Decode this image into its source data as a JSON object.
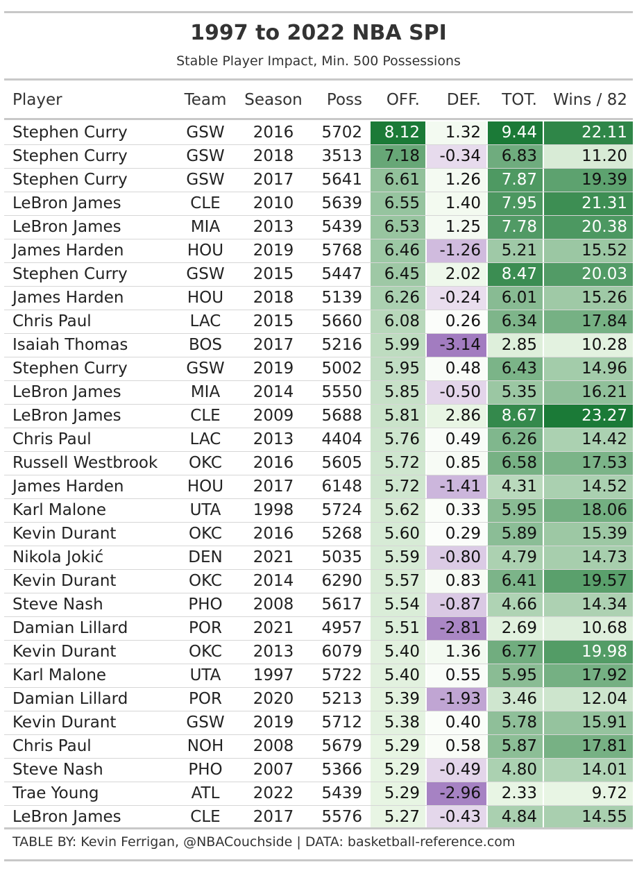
{
  "title": "1997 to 2022 NBA SPI",
  "subtitle": "Stable Player Impact, Min. 500 Possessions",
  "footer": "TABLE BY: Kevin Ferrigan, @NBACouchside | DATA: basketball-reference.com",
  "colors": {
    "green_dark": "#1b7a37",
    "green_light": "#e8f5e4",
    "purple_dark": "#a27cc0",
    "purple_light": "#efe6f2",
    "rule": "#c8c8c8"
  },
  "chart_data": {
    "type": "table",
    "columns": [
      "Player",
      "Team",
      "Season",
      "Poss",
      "OFF.",
      "DEF.",
      "TOT.",
      "Wins / 82"
    ],
    "rows": [
      [
        "Stephen Curry",
        "GSW",
        "2016",
        "5702",
        "8.12",
        "1.32",
        "9.44",
        "22.11"
      ],
      [
        "Stephen Curry",
        "GSW",
        "2018",
        "3513",
        "7.18",
        "-0.34",
        "6.83",
        "11.20"
      ],
      [
        "Stephen Curry",
        "GSW",
        "2017",
        "5641",
        "6.61",
        "1.26",
        "7.87",
        "19.39"
      ],
      [
        "LeBron James",
        "CLE",
        "2010",
        "5639",
        "6.55",
        "1.40",
        "7.95",
        "21.31"
      ],
      [
        "LeBron James",
        "MIA",
        "2013",
        "5439",
        "6.53",
        "1.25",
        "7.78",
        "20.38"
      ],
      [
        "James Harden",
        "HOU",
        "2019",
        "5768",
        "6.46",
        "-1.26",
        "5.21",
        "15.52"
      ],
      [
        "Stephen Curry",
        "GSW",
        "2015",
        "5447",
        "6.45",
        "2.02",
        "8.47",
        "20.03"
      ],
      [
        "James Harden",
        "HOU",
        "2018",
        "5139",
        "6.26",
        "-0.24",
        "6.01",
        "15.26"
      ],
      [
        "Chris Paul",
        "LAC",
        "2015",
        "5660",
        "6.08",
        "0.26",
        "6.34",
        "17.84"
      ],
      [
        "Isaiah Thomas",
        "BOS",
        "2017",
        "5216",
        "5.99",
        "-3.14",
        "2.85",
        "10.28"
      ],
      [
        "Stephen Curry",
        "GSW",
        "2019",
        "5002",
        "5.95",
        "0.48",
        "6.43",
        "14.96"
      ],
      [
        "LeBron James",
        "MIA",
        "2014",
        "5550",
        "5.85",
        "-0.50",
        "5.35",
        "16.21"
      ],
      [
        "LeBron James",
        "CLE",
        "2009",
        "5688",
        "5.81",
        "2.86",
        "8.67",
        "23.27"
      ],
      [
        "Chris Paul",
        "LAC",
        "2013",
        "4404",
        "5.76",
        "0.49",
        "6.26",
        "14.42"
      ],
      [
        "Russell Westbrook",
        "OKC",
        "2016",
        "5605",
        "5.72",
        "0.85",
        "6.58",
        "17.53"
      ],
      [
        "James Harden",
        "HOU",
        "2017",
        "6148",
        "5.72",
        "-1.41",
        "4.31",
        "14.52"
      ],
      [
        "Karl Malone",
        "UTA",
        "1998",
        "5724",
        "5.62",
        "0.33",
        "5.95",
        "18.06"
      ],
      [
        "Kevin Durant",
        "OKC",
        "2016",
        "5268",
        "5.60",
        "0.29",
        "5.89",
        "15.39"
      ],
      [
        "Nikola Jokić",
        "DEN",
        "2021",
        "5035",
        "5.59",
        "-0.80",
        "4.79",
        "14.73"
      ],
      [
        "Kevin Durant",
        "OKC",
        "2014",
        "6290",
        "5.57",
        "0.83",
        "6.41",
        "19.57"
      ],
      [
        "Steve Nash",
        "PHO",
        "2008",
        "5617",
        "5.54",
        "-0.87",
        "4.66",
        "14.34"
      ],
      [
        "Damian Lillard",
        "POR",
        "2021",
        "4957",
        "5.51",
        "-2.81",
        "2.69",
        "10.68"
      ],
      [
        "Kevin Durant",
        "OKC",
        "2013",
        "6079",
        "5.40",
        "1.36",
        "6.77",
        "19.98"
      ],
      [
        "Karl Malone",
        "UTA",
        "1997",
        "5722",
        "5.40",
        "0.55",
        "5.95",
        "17.92"
      ],
      [
        "Damian Lillard",
        "POR",
        "2020",
        "5213",
        "5.39",
        "-1.93",
        "3.46",
        "12.04"
      ],
      [
        "Kevin Durant",
        "GSW",
        "2019",
        "5712",
        "5.38",
        "0.40",
        "5.78",
        "15.91"
      ],
      [
        "Chris Paul",
        "NOH",
        "2008",
        "5679",
        "5.29",
        "0.58",
        "5.87",
        "17.81"
      ],
      [
        "Steve Nash",
        "PHO",
        "2007",
        "5366",
        "5.29",
        "-0.49",
        "4.80",
        "14.01"
      ],
      [
        "Trae Young",
        "ATL",
        "2022",
        "5439",
        "5.29",
        "-2.96",
        "2.33",
        "9.72"
      ],
      [
        "LeBron James",
        "CLE",
        "2017",
        "5576",
        "5.27",
        "-0.43",
        "4.84",
        "14.55"
      ]
    ]
  }
}
